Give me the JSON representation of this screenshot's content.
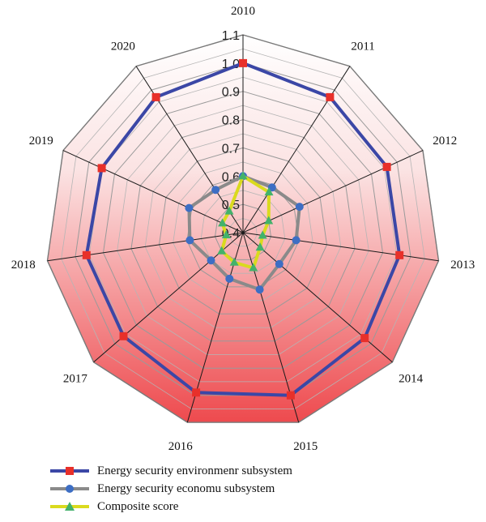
{
  "chart_data": {
    "type": "radar",
    "categories": [
      "2010",
      "2011",
      "2012",
      "2013",
      "2014",
      "2015",
      "2016",
      "2017",
      "2018",
      "2019",
      "2020"
    ],
    "ticks": [
      "0.4",
      "0.5",
      "0.6",
      "0.7",
      "0.8",
      "0.9",
      "1.0",
      "1.1"
    ],
    "rlim": [
      0.4,
      1.1
    ],
    "grid": true,
    "legend_position": "bottom-left",
    "series": [
      {
        "name": "Energy security environmenr subsystem",
        "color": "#3b47a6",
        "marker": "square",
        "marker_color": "#e8302a",
        "values": [
          1.0,
          0.97,
          0.96,
          0.96,
          0.97,
          1.0,
          0.99,
          0.96,
          0.96,
          0.95,
          0.97
        ]
      },
      {
        "name": "Energy security economu subsystem",
        "color": "#8a8a8a",
        "marker": "circle",
        "marker_color": "#3d6ec4",
        "values": [
          0.6,
          0.59,
          0.62,
          0.59,
          0.57,
          0.61,
          0.57,
          0.55,
          0.59,
          0.61,
          0.58
        ]
      },
      {
        "name": "Composite score",
        "color": "#dada1e",
        "marker": "triangle",
        "marker_color": "#43b26b",
        "values": [
          0.6,
          0.57,
          0.5,
          0.47,
          0.48,
          0.53,
          0.51,
          0.5,
          0.46,
          0.48,
          0.49
        ]
      }
    ]
  }
}
